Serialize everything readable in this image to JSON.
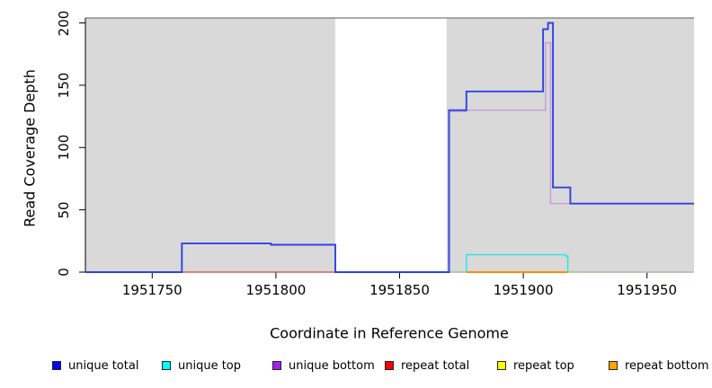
{
  "chart_data": {
    "type": "line",
    "title": "",
    "xlabel": "Coordinate in Reference Genome",
    "ylabel": "Read Coverage Depth",
    "xlim": [
      1951723,
      1951969
    ],
    "ylim": [
      0,
      204
    ],
    "x_ticks": [
      1951750,
      1951800,
      1951850,
      1951900,
      1951950
    ],
    "y_ticks": [
      0,
      50,
      100,
      150,
      200
    ],
    "grid": false,
    "plot_border_top_color": "#7a7a7a",
    "axis_color": "#000000",
    "bands": [
      {
        "from": 1951723,
        "to": 1951824,
        "color": "#d9d9d9"
      },
      {
        "from": 1951824,
        "to": 1951869,
        "color": "#ffffff"
      },
      {
        "from": 1951869,
        "to": 1951969,
        "color": "#d9d9d9"
      }
    ],
    "series": [
      {
        "name": "repeat total",
        "color": "#ff0000",
        "draw_color": "#cc4444",
        "width": 1.3,
        "points": [
          [
            1951723,
            0
          ],
          [
            1951969,
            0
          ]
        ]
      },
      {
        "name": "repeat top",
        "color": "#ffff00",
        "draw_color": "#9bd49b",
        "width": 1.3,
        "points": [
          [
            1951870,
            0
          ],
          [
            1951969,
            0
          ]
        ]
      },
      {
        "name": "repeat bottom",
        "color": "#ffa500",
        "draw_color": "#ff8c00",
        "width": 2,
        "points": [
          [
            1951877,
            0
          ],
          [
            1951918,
            0
          ]
        ]
      },
      {
        "name": "unique top",
        "color": "#00ffff",
        "draw_color": "#27e3e3",
        "width": 1.4,
        "points": [
          [
            1951877,
            0
          ],
          [
            1951877,
            14
          ],
          [
            1951917,
            14
          ],
          [
            1951917,
            13
          ],
          [
            1951918,
            13
          ],
          [
            1951918,
            0
          ]
        ]
      },
      {
        "name": "unique bottom",
        "color": "#a020f0",
        "draw_color": "#c79ade",
        "width": 1.4,
        "points": [
          [
            1951870,
            0
          ],
          [
            1951870,
            129
          ],
          [
            1951877,
            129
          ],
          [
            1951877,
            130
          ],
          [
            1951909,
            130
          ],
          [
            1951909,
            184
          ],
          [
            1951911,
            184
          ],
          [
            1951911,
            55
          ],
          [
            1951969,
            55
          ]
        ]
      },
      {
        "name": "unique total",
        "color": "#0000ff",
        "draw_color": "#3042e2",
        "width": 1.9,
        "points": [
          [
            1951723,
            0
          ],
          [
            1951762,
            0
          ],
          [
            1951762,
            23
          ],
          [
            1951798,
            23
          ],
          [
            1951798,
            22
          ],
          [
            1951824,
            22
          ],
          [
            1951824,
            0
          ],
          [
            1951870,
            0
          ],
          [
            1951870,
            130
          ],
          [
            1951877,
            130
          ],
          [
            1951877,
            145
          ],
          [
            1951908,
            145
          ],
          [
            1951908,
            195
          ],
          [
            1951910,
            195
          ],
          [
            1951910,
            200
          ],
          [
            1951912,
            200
          ],
          [
            1951912,
            68
          ],
          [
            1951919,
            68
          ],
          [
            1951919,
            55
          ],
          [
            1951969,
            55
          ]
        ]
      }
    ],
    "legend": [
      {
        "label": "unique total",
        "color": "#0000ff"
      },
      {
        "label": "unique top",
        "color": "#00ffff"
      },
      {
        "label": "unique bottom",
        "color": "#a020f0"
      },
      {
        "label": "repeat total",
        "color": "#ff0000"
      },
      {
        "label": "repeat top",
        "color": "#ffff00"
      },
      {
        "label": "repeat bottom",
        "color": "#ffa500"
      }
    ],
    "legend_position": "bottom"
  }
}
